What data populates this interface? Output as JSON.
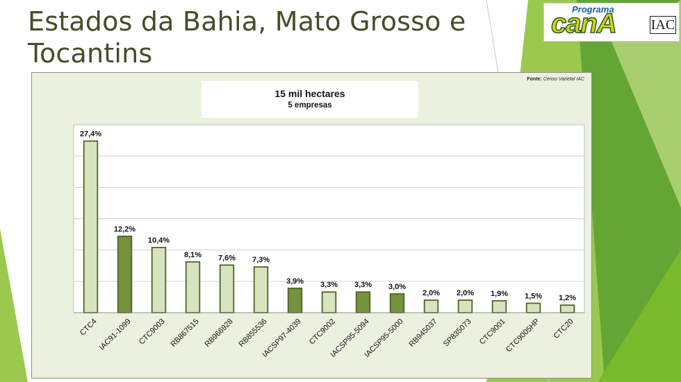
{
  "slide": {
    "title": "Estados da Bahia, Mato Grosso e Tocantins",
    "logo": {
      "top": "Programa",
      "main": "canA",
      "badge": "IAC"
    },
    "source_label": "Fonte:",
    "source_text": "Censo Varietal IAC",
    "colors": {
      "title": "#4a4a2a",
      "panel_bg": "#ebf1df",
      "accent_green": "#7ab82c"
    }
  },
  "chart_data": {
    "type": "bar",
    "title": "15 mil hectares",
    "subtitle": "5 empresas",
    "categories": [
      "CTC4",
      "IAC91-1099",
      "CTC9003",
      "RB867515",
      "RB966928",
      "RB855536",
      "IACSP97-4039",
      "CTC9002",
      "IACSP95-5094",
      "IACSP95-5000",
      "RB945037",
      "SP835073",
      "CTC9001",
      "CTC9005HP",
      "CTC20"
    ],
    "values": [
      27.4,
      12.2,
      10.4,
      8.1,
      7.6,
      7.3,
      3.9,
      3.3,
      3.3,
      3.0,
      2.0,
      2.0,
      1.9,
      1.5,
      1.2
    ],
    "value_labels": [
      "27,4%",
      "12,2%",
      "10,4%",
      "8,1%",
      "7,6%",
      "7,3%",
      "3,9%",
      "3,3%",
      "3,3%",
      "3,0%",
      "2,0%",
      "2,0%",
      "1,9%",
      "1,5%",
      "1,2%"
    ],
    "highlight": [
      false,
      true,
      false,
      false,
      false,
      false,
      true,
      false,
      true,
      true,
      false,
      false,
      false,
      false,
      false
    ],
    "colors": {
      "bar": "#d7e4bd",
      "bar_highlight": "#76923c",
      "bar_stroke": "#4f6228",
      "gridline": "#d0d0d0"
    },
    "ylim": [
      0,
      30
    ],
    "gridlines": true,
    "y_ticks_visible": false
  }
}
